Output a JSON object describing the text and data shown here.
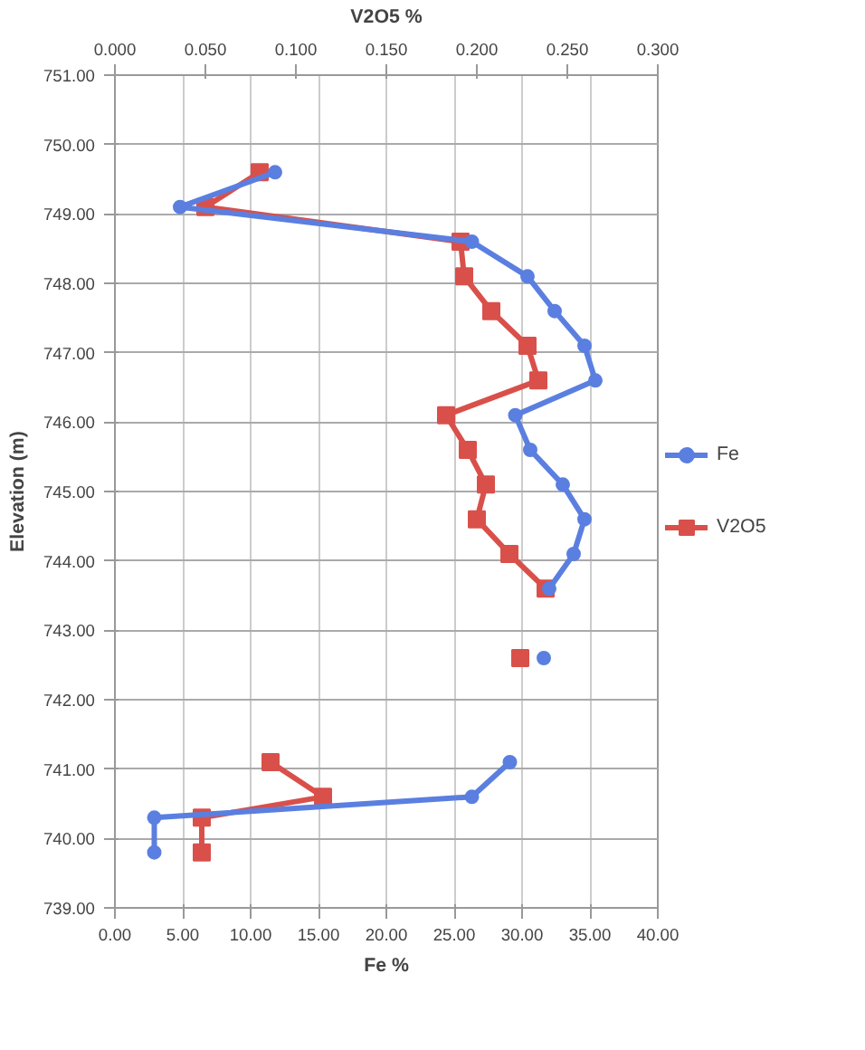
{
  "chart_data": {
    "type": "line",
    "xlabel": "Fe %",
    "x2label": "V2O5 %",
    "ylabel": "Elevation (m)",
    "series": [
      {
        "name": "Fe",
        "color": "#5a7fe0",
        "marker": "circle",
        "x": [
          11.8,
          4.8,
          26.3,
          30.4,
          32.4,
          34.6,
          35.4,
          29.5,
          30.6,
          33.0,
          34.6,
          33.8,
          32.0,
          null,
          31.6,
          null,
          29.1,
          26.3,
          2.9,
          2.9
        ],
        "values": [
          749.6,
          749.1,
          748.6,
          748.1,
          747.6,
          747.1,
          746.6,
          746.1,
          745.6,
          745.1,
          744.6,
          744.1,
          743.6,
          null,
          742.6,
          null,
          741.1,
          740.6,
          740.3,
          739.8
        ]
      },
      {
        "name": "V2O5",
        "color": "#d9504a",
        "marker": "square",
        "axis": "x2",
        "x": [
          0.08,
          0.05,
          0.191,
          0.193,
          0.208,
          0.228,
          0.234,
          0.183,
          0.195,
          0.205,
          0.2,
          0.218,
          0.238,
          null,
          0.224,
          null,
          0.086,
          0.115,
          0.048,
          0.048
        ],
        "values": [
          749.6,
          749.1,
          748.6,
          748.1,
          747.6,
          747.1,
          746.6,
          746.1,
          745.6,
          745.1,
          744.6,
          744.1,
          743.6,
          null,
          742.6,
          null,
          741.1,
          740.6,
          740.3,
          739.8
        ]
      }
    ],
    "xlim": [
      0,
      40
    ],
    "xticks": [
      {
        "value": 0,
        "label": "0.00"
      },
      {
        "value": 5,
        "label": "5.00"
      },
      {
        "value": 10,
        "label": "10.00"
      },
      {
        "value": 15,
        "label": "15.00"
      },
      {
        "value": 20,
        "label": "20.00"
      },
      {
        "value": 25,
        "label": "25.00"
      },
      {
        "value": 30,
        "label": "30.00"
      },
      {
        "value": 35,
        "label": "35.00"
      },
      {
        "value": 40,
        "label": "40.00"
      }
    ],
    "x2lim": [
      0,
      0.3
    ],
    "x2ticks": [
      {
        "value": 0,
        "label": "0.000"
      },
      {
        "value": 0.05,
        "label": "0.050"
      },
      {
        "value": 0.1,
        "label": "0.100"
      },
      {
        "value": 0.15,
        "label": "0.150"
      },
      {
        "value": 0.2,
        "label": "0.200"
      },
      {
        "value": 0.25,
        "label": "0.250"
      },
      {
        "value": 0.3,
        "label": "0.300"
      }
    ],
    "ylim": [
      739,
      751
    ],
    "yticks": [
      {
        "value": 739,
        "label": "739.00"
      },
      {
        "value": 740,
        "label": "740.00"
      },
      {
        "value": 741,
        "label": "741.00"
      },
      {
        "value": 742,
        "label": "742.00"
      },
      {
        "value": 743,
        "label": "743.00"
      },
      {
        "value": 744,
        "label": "744.00"
      },
      {
        "value": 745,
        "label": "745.00"
      },
      {
        "value": 746,
        "label": "746.00"
      },
      {
        "value": 747,
        "label": "747.00"
      },
      {
        "value": 748,
        "label": "748.00"
      },
      {
        "value": 749,
        "label": "749.00"
      },
      {
        "value": 750,
        "label": "750.00"
      },
      {
        "value": 751,
        "label": "751.00"
      }
    ],
    "grid": true,
    "legend": "right",
    "line_style": "solid"
  }
}
